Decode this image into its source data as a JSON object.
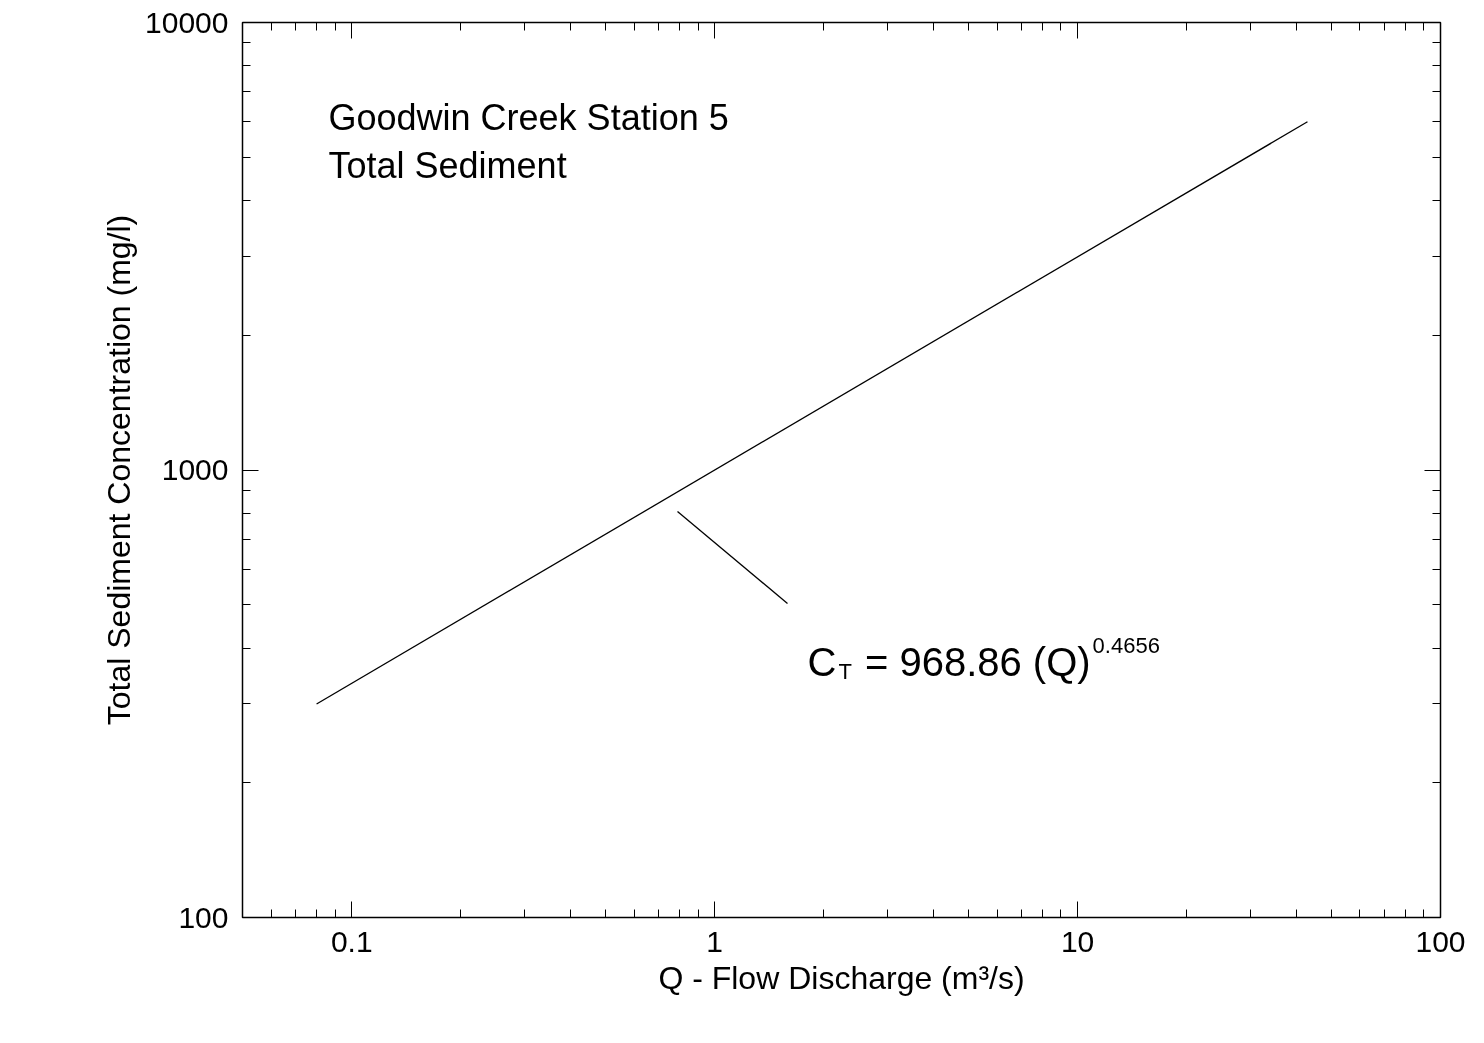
{
  "chart_data": {
    "type": "line",
    "title": "Goodwin Creek Station 5",
    "subtitle": "Total Sediment",
    "xlabel": "Q - Flow Discharge (m³/s)",
    "ylabel": "Total Sediment Concentration (mg/l)",
    "log": "xy",
    "grid": false,
    "x": [
      0.08,
      43
    ],
    "series": [
      {
        "color": "#000000",
        "values": [
          300,
          6000
        ]
      }
    ],
    "xlim": [
      0.05,
      100
    ],
    "ylim": [
      100,
      10000
    ],
    "xticks": [
      {
        "value": 0.06,
        "label": null
      },
      {
        "value": 0.07,
        "label": null
      },
      {
        "value": 0.08,
        "label": null
      },
      {
        "value": 0.09,
        "label": null
      },
      0.1,
      {
        "value": 0.2,
        "label": null
      },
      {
        "value": 0.3,
        "label": null
      },
      {
        "value": 0.4,
        "label": null
      },
      {
        "value": 0.5,
        "label": null
      },
      {
        "value": 0.6,
        "label": null
      },
      {
        "value": 0.7,
        "label": null
      },
      {
        "value": 0.8,
        "label": null
      },
      {
        "value": 0.9,
        "label": null
      },
      1,
      {
        "value": 2,
        "label": null
      },
      {
        "value": 3,
        "label": null
      },
      {
        "value": 4,
        "label": null
      },
      {
        "value": 5,
        "label": null
      },
      {
        "value": 6,
        "label": null
      },
      {
        "value": 7,
        "label": null
      },
      {
        "value": 8,
        "label": null
      },
      {
        "value": 9,
        "label": null
      },
      10,
      {
        "value": 20,
        "label": null
      },
      {
        "value": 30,
        "label": null
      },
      {
        "value": 40,
        "label": null
      },
      {
        "value": 50,
        "label": null
      },
      {
        "value": 60,
        "label": null
      },
      {
        "value": 70,
        "label": null
      },
      {
        "value": 80,
        "label": null
      },
      {
        "value": 90,
        "label": null
      },
      100
    ],
    "yticks": [
      100,
      {
        "value": 200,
        "label": null
      },
      {
        "value": 300,
        "label": null
      },
      {
        "value": 400,
        "label": null
      },
      {
        "value": 500,
        "label": null
      },
      {
        "value": 600,
        "label": null
      },
      {
        "value": 700,
        "label": null
      },
      {
        "value": 800,
        "label": null
      },
      {
        "value": 900,
        "label": null
      },
      1000,
      {
        "value": 2000,
        "label": null
      },
      {
        "value": 3000,
        "label": null
      },
      {
        "value": 4000,
        "label": null
      },
      {
        "value": 5000,
        "label": null
      },
      {
        "value": 6000,
        "label": null
      },
      {
        "value": 7000,
        "label": null
      },
      {
        "value": 8000,
        "label": null
      },
      {
        "value": 9000,
        "label": null
      },
      10000
    ],
    "annotations": [
      "C$_{T}$ = 968.86 (Q)$^{0.4656}$"
    ]
  }
}
